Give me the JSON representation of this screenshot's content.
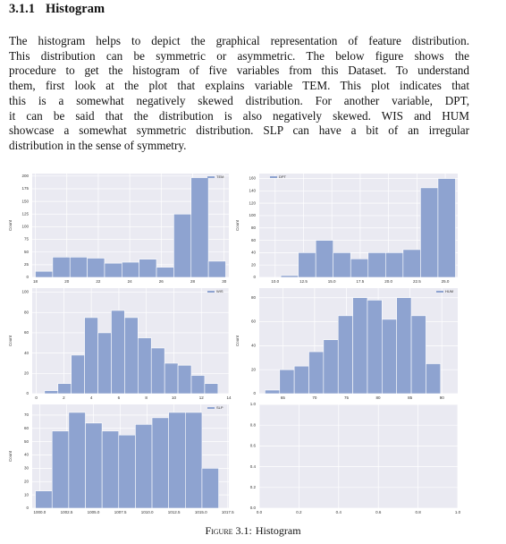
{
  "heading": {
    "number": "3.1.1",
    "title": "Histogram"
  },
  "paragraph": [
    "The histogram helps to depict the graphical representation of feature distribution.",
    "This distribution can be symmetric or asymmetric. The below figure shows the",
    "procedure to get the histogram of five variables from this Dataset. To understand",
    "them, first look at the plot that explains variable TEM. This plot indicates that",
    "this is a somewhat negatively skewed distribution. For another variable, DPT,",
    "it can be said that the distribution is also negatively skewed. WIS and HUM",
    "showcase a somewhat symmetric distribution. SLP can have a bit of an irregular",
    "distribution in the sense of symmetry."
  ],
  "figure": {
    "charts": [
      {
        "type": "histogram",
        "ylabel": "Count",
        "legend": "upper right",
        "series": [
          {
            "name": "TEM",
            "color": "#8ea3d0",
            "values": [
              12,
              40,
              40,
              38,
              28,
              30,
              36,
              20,
              125,
              197,
              32
            ]
          }
        ],
        "bins": [
          18.0,
          19.1,
          20.2,
          21.3,
          22.4,
          23.5,
          24.6,
          25.7,
          26.8,
          27.9,
          29.0,
          30.1
        ],
        "xlim": [
          17.8,
          30.3
        ],
        "xticks": [
          18,
          20,
          22,
          24,
          26,
          28,
          30
        ],
        "ylim": [
          0,
          205
        ],
        "yticks": [
          0,
          25,
          50,
          75,
          100,
          125,
          150,
          175,
          200
        ]
      },
      {
        "type": "histogram",
        "ylabel": "Count",
        "legend": "upper left",
        "series": [
          {
            "name": "DPT",
            "color": "#8ea3d0",
            "values": [
              3,
              40,
              60,
              40,
              30,
              40,
              40,
              45,
              145,
              160
            ]
          }
        ],
        "bins": [
          10.5,
          12.04,
          13.58,
          15.12,
          16.66,
          18.2,
          19.74,
          21.28,
          22.82,
          24.36,
          25.9
        ],
        "xlim": [
          8.6,
          26.1
        ],
        "xticks": [
          {
            "value": 10,
            "label": "10.0"
          },
          12.5,
          {
            "value": 15,
            "label": "15.0"
          },
          17.5,
          {
            "value": 20,
            "label": "20.0"
          },
          22.5,
          {
            "value": 25,
            "label": "25.0"
          }
        ],
        "ylim": [
          0,
          168
        ],
        "yticks": [
          0,
          20,
          40,
          60,
          80,
          100,
          120,
          140,
          160
        ]
      },
      {
        "type": "histogram",
        "ylabel": "Count",
        "legend": "upper right",
        "series": [
          {
            "name": "WIS",
            "color": "#8ea3d0",
            "values": [
              3,
              10,
              38,
              75,
              60,
              82,
              75,
              55,
              45,
              30,
              28,
              18,
              10
            ]
          }
        ],
        "bins": [
          0.6,
          1.57,
          2.54,
          3.51,
          4.48,
          5.45,
          6.42,
          7.39,
          8.36,
          9.33,
          10.3,
          11.27,
          12.24,
          13.21
        ],
        "xlim": [
          -0.3,
          14.0
        ],
        "xticks": [
          0,
          2,
          4,
          6,
          8,
          10,
          12,
          14
        ],
        "ylim": [
          0,
          104
        ],
        "yticks": [
          0,
          20,
          40,
          60,
          80,
          100
        ]
      },
      {
        "type": "histogram",
        "ylabel": "Count",
        "legend": "upper right",
        "series": [
          {
            "name": "HUM",
            "color": "#8ea3d0",
            "values": [
              3,
              20,
              23,
              35,
              45,
              65,
              80,
              78,
              62,
              80,
              65,
              25
            ]
          }
        ],
        "bins": [
          62.2,
          64.5,
          66.8,
          69.1,
          71.4,
          73.7,
          76.0,
          78.3,
          80.6,
          82.9,
          85.2,
          87.5,
          89.8
        ],
        "xlim": [
          61.3,
          92.5
        ],
        "xticks": [
          65,
          70,
          75,
          80,
          85,
          90
        ],
        "ylim": [
          0,
          88
        ],
        "yticks": [
          0,
          20,
          40,
          60,
          80
        ]
      },
      {
        "type": "histogram",
        "ylabel": "Count",
        "legend": "upper right",
        "series": [
          {
            "name": "SLP",
            "color": "#8ea3d0",
            "values": [
              13,
              58,
              72,
              64,
              58,
              55,
              63,
              68,
              72,
              72,
              30
            ]
          }
        ],
        "bins": [
          999.6,
          1001.15,
          1002.7,
          1004.25,
          1005.8,
          1007.35,
          1008.9,
          1010.45,
          1012.0,
          1013.55,
          1015.1,
          1016.65
        ],
        "xlim": [
          999.3,
          1017.6
        ],
        "xticks": [
          {
            "value": 1000,
            "label": "1000.0"
          },
          1002.5,
          {
            "value": 1005,
            "label": "1005.0"
          },
          1007.5,
          {
            "value": 1010,
            "label": "1010.0"
          },
          1012.5,
          {
            "value": 1015,
            "label": "1015.0"
          },
          1017.5
        ],
        "ylim": [
          0,
          78
        ],
        "yticks": [
          0,
          10,
          20,
          30,
          40,
          50,
          60,
          70
        ]
      },
      {
        "type": "empty",
        "xlim": [
          0,
          1
        ],
        "xticks": [
          {
            "value": 0,
            "label": "0.0"
          },
          0.2,
          0.4,
          0.6,
          0.8,
          {
            "value": 1,
            "label": "1.0"
          }
        ],
        "ylim": [
          0,
          1
        ],
        "yticks": [
          {
            "value": 0,
            "label": "0.0"
          },
          0.2,
          0.4,
          0.6,
          0.8,
          {
            "value": 1,
            "label": "1.0"
          }
        ]
      }
    ],
    "caption": {
      "label": "Figure 3.1:",
      "text": "Histogram"
    }
  }
}
